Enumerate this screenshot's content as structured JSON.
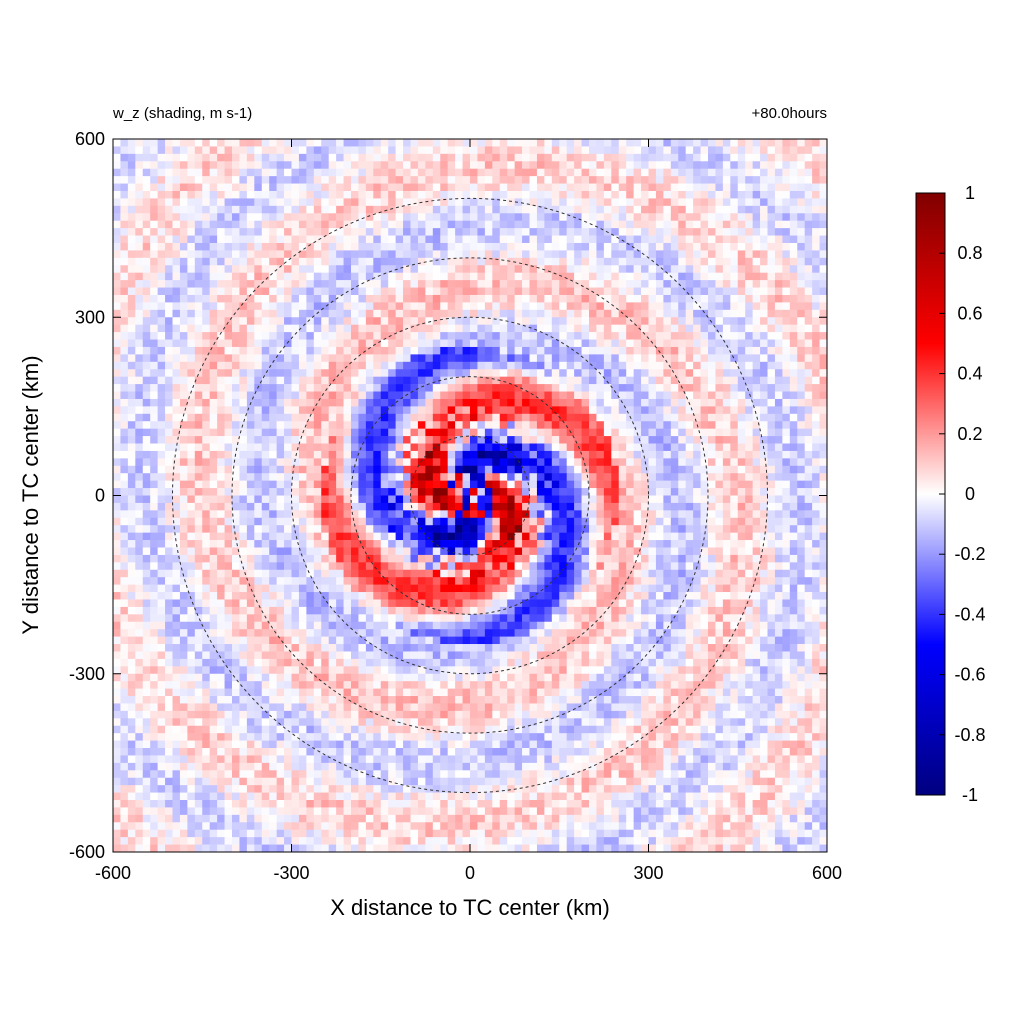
{
  "chart_data": {
    "type": "heatmap",
    "title_left": "w_z (shading, m s-1)",
    "title_right": "+80.0hours",
    "xlabel": "X distance to TC center (km)",
    "ylabel": "Y distance to TC center (km)",
    "xlim": [
      -600,
      600
    ],
    "ylim": [
      -600,
      600
    ],
    "xticks": [
      "-600",
      "-300",
      "0",
      "300",
      "600"
    ],
    "yticks": [
      "600",
      "300",
      "0",
      "-300",
      "-600"
    ],
    "xtick_values": [
      -600,
      -300,
      0,
      300,
      600
    ],
    "ytick_values": [
      600,
      300,
      0,
      -300,
      -600
    ],
    "range_circles_km": [
      100,
      200,
      300,
      400,
      500
    ],
    "circle_center_km": [
      0,
      0
    ],
    "colorbar": {
      "min": -1,
      "max": 1,
      "tick_labels": [
        "1",
        "0.8",
        "0.6",
        "0.4",
        "0.2",
        "0",
        "-0.2",
        "-0.4",
        "-0.6",
        "-0.8",
        "-1"
      ],
      "tick_values": [
        1,
        0.8,
        0.6,
        0.4,
        0.2,
        0,
        -0.2,
        -0.4,
        -0.6,
        -0.8,
        -1
      ],
      "colors": [
        "#000080",
        "#0000ff",
        "#ffffff",
        "#ff0000",
        "#800000"
      ]
    },
    "field_description": "spiral rainbands of vertical velocity around the TC center; strongest |w| within 100 km radius",
    "grid": false
  }
}
